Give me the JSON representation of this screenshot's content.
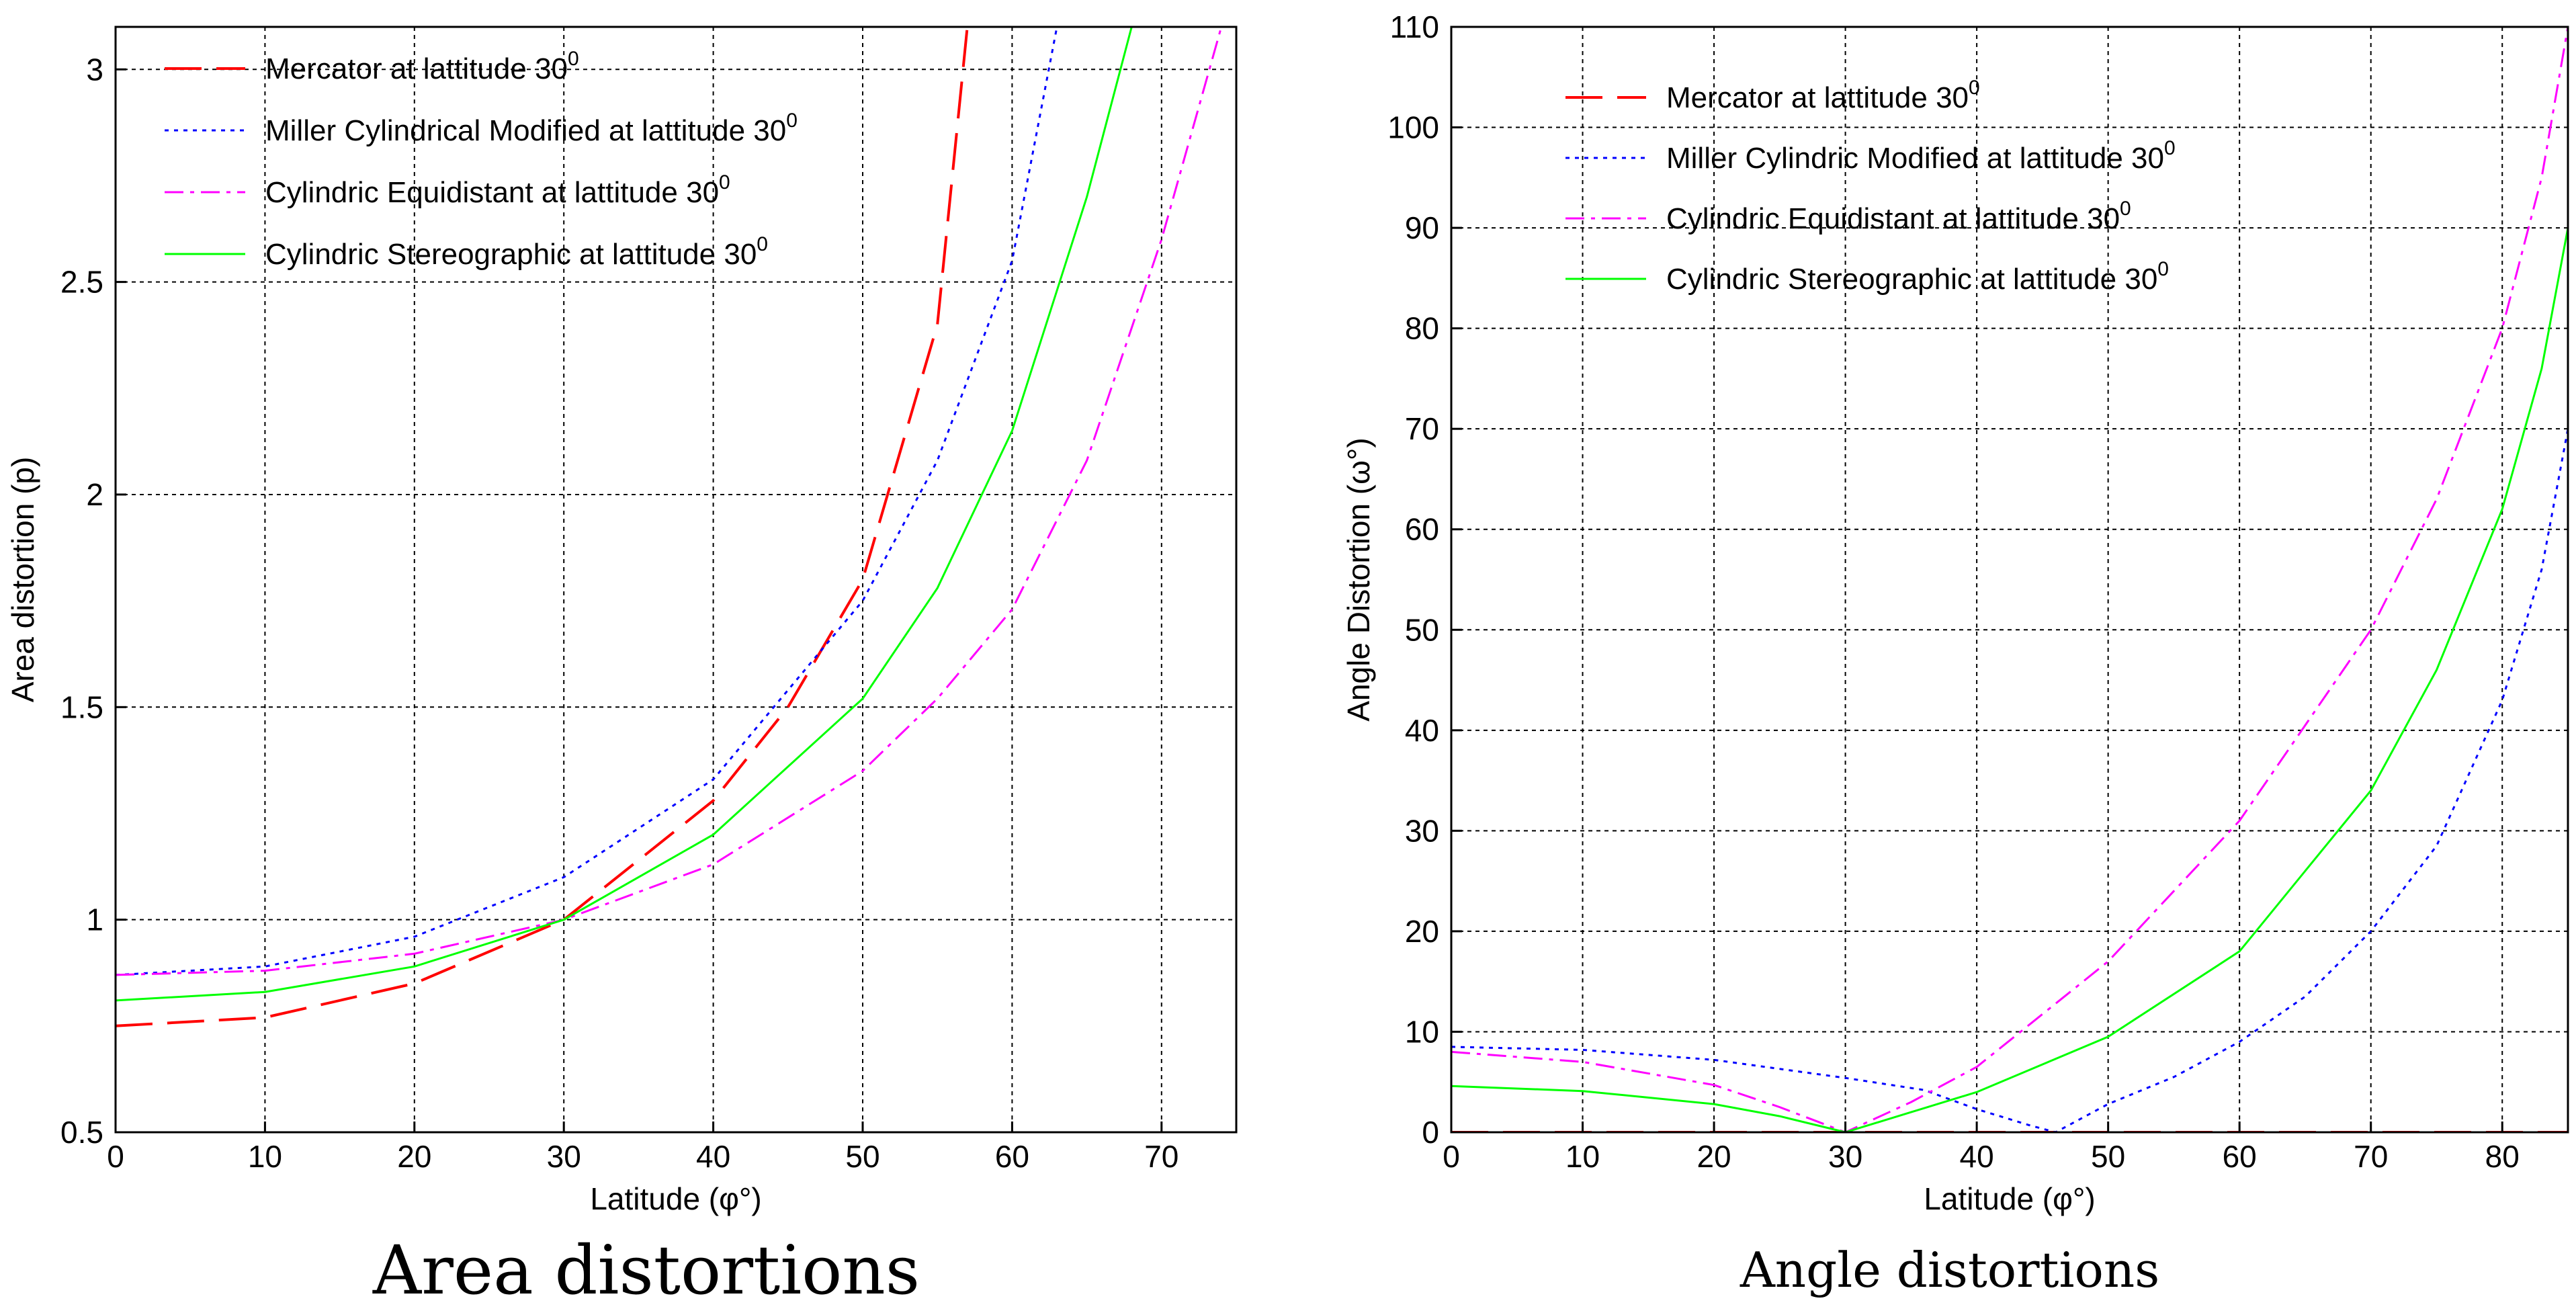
{
  "chart_data": [
    {
      "type": "line",
      "caption": "Area distortions",
      "xlabel": "Latitude (φ°)",
      "ylabel": "Area distortion (p)",
      "xlim": [
        0,
        75
      ],
      "ylim": [
        0.5,
        3.1
      ],
      "xticks": [
        0,
        10,
        20,
        30,
        40,
        50,
        60,
        70
      ],
      "yticks": [
        0.5,
        1,
        1.5,
        2,
        2.5,
        3
      ],
      "ytick_labels": [
        "0.5",
        "1",
        "1.5",
        "2",
        "2.5",
        "3"
      ],
      "grid": true,
      "legend_placement": "top-left",
      "series": [
        {
          "name": "Mercator at lattitude 30",
          "name_sup": "0",
          "color": "#ff0000",
          "dash": "long-dash",
          "x": [
            0,
            10,
            20,
            30,
            40,
            45,
            50,
            55,
            57
          ],
          "y": [
            0.75,
            0.77,
            0.85,
            1.0,
            1.28,
            1.5,
            1.8,
            2.4,
            3.1
          ]
        },
        {
          "name": "Miller Cylindrical Modified at lattitude 30",
          "name_sup": "0",
          "color": "#0000ff",
          "dash": "dotted",
          "x": [
            0,
            10,
            20,
            30,
            40,
            50,
            55,
            60,
            63
          ],
          "y": [
            0.87,
            0.89,
            0.96,
            1.1,
            1.33,
            1.75,
            2.08,
            2.55,
            3.1
          ]
        },
        {
          "name": "Cylindric Equidistant at lattitude 30",
          "name_sup": "0",
          "color": "#ff00ff",
          "dash": "dash-dot",
          "x": [
            0,
            10,
            20,
            30,
            40,
            50,
            55,
            60,
            65,
            70,
            74
          ],
          "y": [
            0.87,
            0.88,
            0.92,
            1.0,
            1.13,
            1.35,
            1.52,
            1.73,
            2.08,
            2.6,
            3.1
          ]
        },
        {
          "name": "Cylindric Stereographic at lattitude 30",
          "name_sup": "0",
          "color": "#00ff00",
          "dash": "solid",
          "x": [
            0,
            10,
            20,
            30,
            40,
            50,
            55,
            60,
            65,
            68
          ],
          "y": [
            0.81,
            0.83,
            0.89,
            1.0,
            1.2,
            1.52,
            1.78,
            2.15,
            2.7,
            3.1
          ]
        }
      ]
    },
    {
      "type": "line",
      "caption": "Angle distortions",
      "xlabel": "Latitude (φ°)",
      "ylabel": "Angle Distortion (ω°)",
      "xlim": [
        0,
        85
      ],
      "ylim": [
        0,
        110
      ],
      "xticks": [
        0,
        10,
        20,
        30,
        40,
        50,
        60,
        70,
        80
      ],
      "yticks": [
        0,
        10,
        20,
        30,
        40,
        50,
        60,
        70,
        80,
        90,
        100,
        110
      ],
      "ytick_labels": [
        "0",
        "10",
        "20",
        "30",
        "40",
        "50",
        "60",
        "70",
        "80",
        "90",
        "100",
        "110"
      ],
      "grid": true,
      "legend_placement": "top-left",
      "series": [
        {
          "name": "Mercator at lattitude 30",
          "name_sup": "0",
          "color": "#ff0000",
          "dash": "long-dash",
          "x": [
            0,
            85
          ],
          "y": [
            0,
            0
          ]
        },
        {
          "name": "Miller Cylindric Modified at lattitude 30",
          "name_sup": "0",
          "color": "#0000ff",
          "dash": "dotted",
          "x": [
            0,
            10,
            20,
            30,
            36,
            40,
            44,
            46,
            50,
            55,
            60,
            65,
            70,
            75,
            80,
            83,
            85
          ],
          "y": [
            8.5,
            8.2,
            7.2,
            5.4,
            4.2,
            2.3,
            0.7,
            0,
            2.8,
            5.5,
            9.0,
            13.5,
            20.0,
            28.5,
            43.0,
            56.0,
            70.0
          ]
        },
        {
          "name": "Cylindric Equidistant at lattitude 30",
          "name_sup": "0",
          "color": "#ff00ff",
          "dash": "dash-dot",
          "x": [
            0,
            10,
            20,
            25,
            30,
            35,
            40,
            50,
            60,
            70,
            75,
            80,
            83,
            85
          ],
          "y": [
            8.0,
            7.0,
            4.7,
            2.5,
            0,
            3.0,
            6.5,
            17.0,
            31.0,
            50.0,
            63.0,
            80.0,
            95.0,
            110.0
          ]
        },
        {
          "name": "Cylindric Stereographic at lattitude 30",
          "name_sup": "0",
          "color": "#00ff00",
          "dash": "solid",
          "x": [
            0,
            10,
            20,
            25,
            30,
            35,
            40,
            50,
            60,
            70,
            75,
            80,
            83,
            85
          ],
          "y": [
            4.6,
            4.1,
            2.8,
            1.6,
            0,
            2.0,
            4.0,
            9.5,
            18.0,
            34.0,
            46.0,
            62.0,
            76.0,
            90.0
          ]
        }
      ]
    }
  ]
}
